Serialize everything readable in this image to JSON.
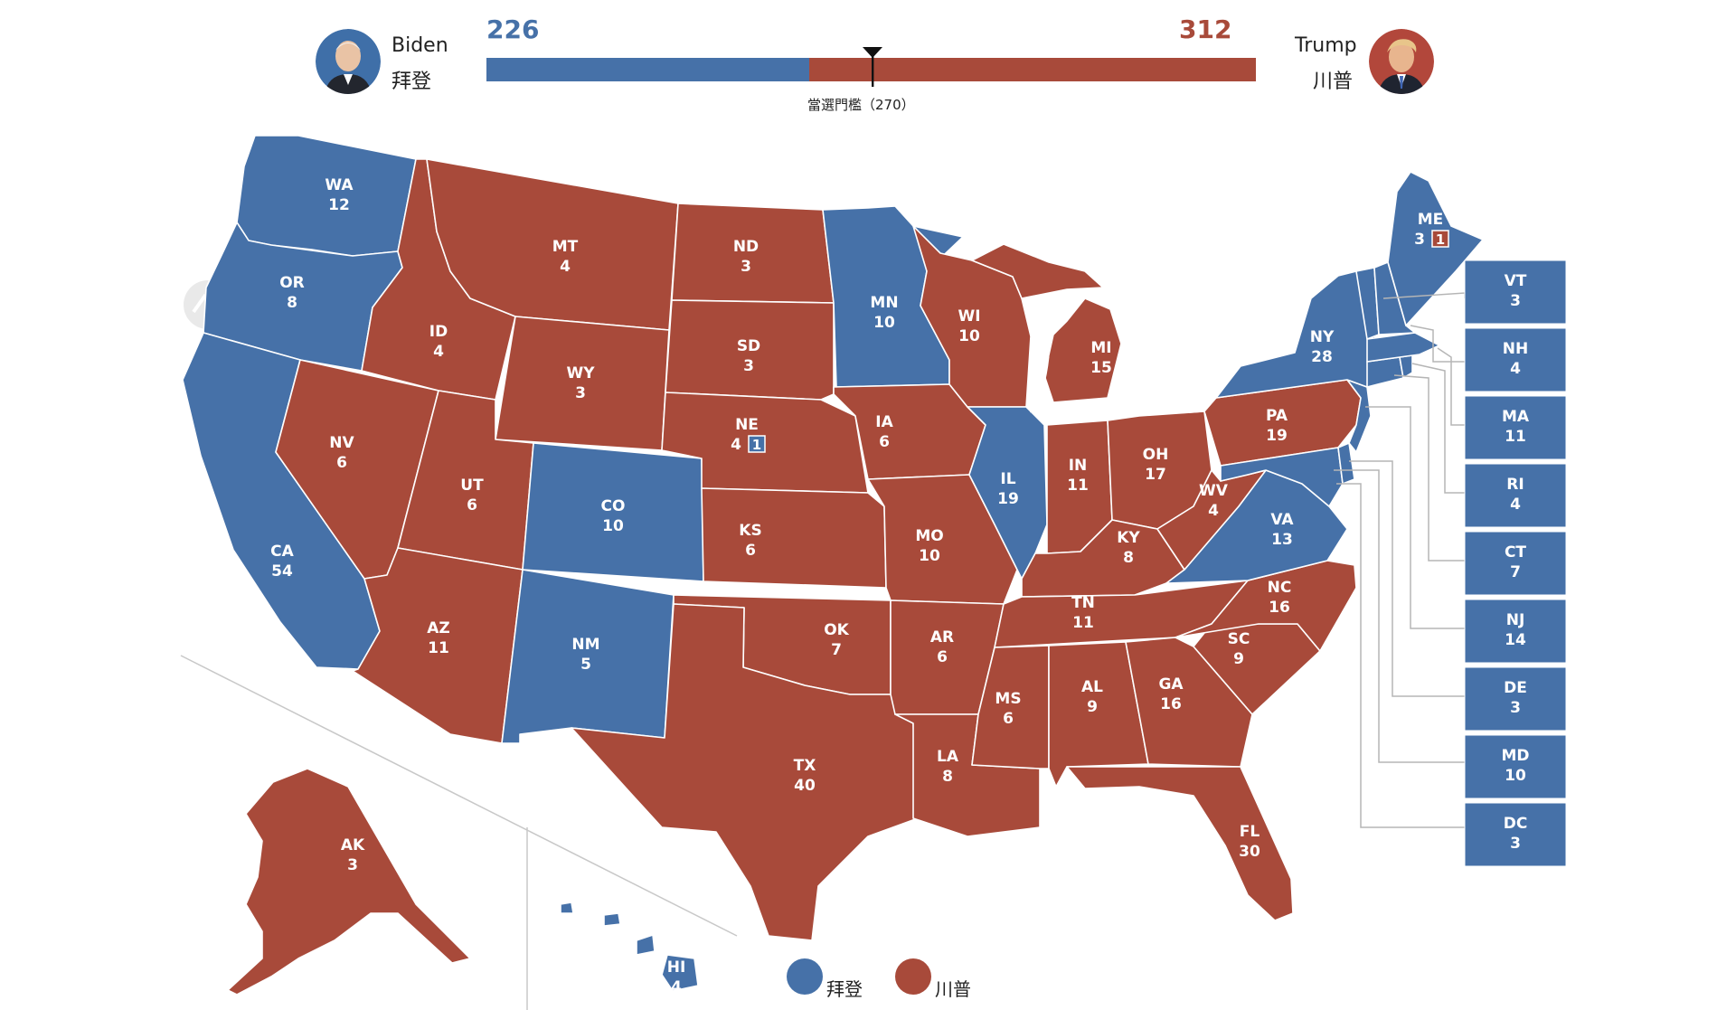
{
  "header": {
    "biden": {
      "name": "Biden",
      "name_zh": "拜登",
      "score": "226"
    },
    "trump": {
      "name": "Trump",
      "name_zh": "川普",
      "score": "312"
    },
    "threshold_label": "當選門檻（270）"
  },
  "totals": {
    "biden": 226,
    "trump": 312,
    "threshold": 270
  },
  "colors": {
    "biden": "#4671a8",
    "trump": "#a84a3a"
  },
  "legend": {
    "biden": "拜登",
    "trump": "川普"
  },
  "watermark": "flourish",
  "states": [
    {
      "abbr": "WA",
      "ev": "12",
      "winner": "biden"
    },
    {
      "abbr": "OR",
      "ev": "8",
      "winner": "biden"
    },
    {
      "abbr": "CA",
      "ev": "54",
      "winner": "biden"
    },
    {
      "abbr": "NV",
      "ev": "6",
      "winner": "trump"
    },
    {
      "abbr": "ID",
      "ev": "4",
      "winner": "trump"
    },
    {
      "abbr": "MT",
      "ev": "4",
      "winner": "trump"
    },
    {
      "abbr": "WY",
      "ev": "3",
      "winner": "trump"
    },
    {
      "abbr": "UT",
      "ev": "6",
      "winner": "trump"
    },
    {
      "abbr": "AZ",
      "ev": "11",
      "winner": "trump"
    },
    {
      "abbr": "CO",
      "ev": "10",
      "winner": "biden"
    },
    {
      "abbr": "NM",
      "ev": "5",
      "winner": "biden"
    },
    {
      "abbr": "ND",
      "ev": "3",
      "winner": "trump"
    },
    {
      "abbr": "SD",
      "ev": "3",
      "winner": "trump"
    },
    {
      "abbr": "NE",
      "ev": "4",
      "winner": "trump",
      "split": "1"
    },
    {
      "abbr": "KS",
      "ev": "6",
      "winner": "trump"
    },
    {
      "abbr": "OK",
      "ev": "7",
      "winner": "trump"
    },
    {
      "abbr": "TX",
      "ev": "40",
      "winner": "trump"
    },
    {
      "abbr": "MN",
      "ev": "10",
      "winner": "biden"
    },
    {
      "abbr": "IA",
      "ev": "6",
      "winner": "trump"
    },
    {
      "abbr": "MO",
      "ev": "10",
      "winner": "trump"
    },
    {
      "abbr": "AR",
      "ev": "6",
      "winner": "trump"
    },
    {
      "abbr": "LA",
      "ev": "8",
      "winner": "trump"
    },
    {
      "abbr": "WI",
      "ev": "10",
      "winner": "trump"
    },
    {
      "abbr": "IL",
      "ev": "19",
      "winner": "biden"
    },
    {
      "abbr": "MI",
      "ev": "15",
      "winner": "trump"
    },
    {
      "abbr": "IN",
      "ev": "11",
      "winner": "trump"
    },
    {
      "abbr": "OH",
      "ev": "17",
      "winner": "trump"
    },
    {
      "abbr": "KY",
      "ev": "8",
      "winner": "trump"
    },
    {
      "abbr": "TN",
      "ev": "11",
      "winner": "trump"
    },
    {
      "abbr": "MS",
      "ev": "6",
      "winner": "trump"
    },
    {
      "abbr": "AL",
      "ev": "9",
      "winner": "trump"
    },
    {
      "abbr": "GA",
      "ev": "16",
      "winner": "trump"
    },
    {
      "abbr": "FL",
      "ev": "30",
      "winner": "trump"
    },
    {
      "abbr": "SC",
      "ev": "9",
      "winner": "trump"
    },
    {
      "abbr": "NC",
      "ev": "16",
      "winner": "trump"
    },
    {
      "abbr": "VA",
      "ev": "13",
      "winner": "biden"
    },
    {
      "abbr": "WV",
      "ev": "4",
      "winner": "trump"
    },
    {
      "abbr": "PA",
      "ev": "19",
      "winner": "trump"
    },
    {
      "abbr": "NY",
      "ev": "28",
      "winner": "biden"
    },
    {
      "abbr": "ME",
      "ev": "3",
      "winner": "biden",
      "split": "1"
    },
    {
      "abbr": "AK",
      "ev": "3",
      "winner": "trump"
    },
    {
      "abbr": "HI",
      "ev": "4",
      "winner": "biden"
    }
  ],
  "small_states": [
    {
      "abbr": "VT",
      "ev": "3",
      "winner": "biden"
    },
    {
      "abbr": "NH",
      "ev": "4",
      "winner": "biden"
    },
    {
      "abbr": "MA",
      "ev": "11",
      "winner": "biden"
    },
    {
      "abbr": "RI",
      "ev": "4",
      "winner": "biden"
    },
    {
      "abbr": "CT",
      "ev": "7",
      "winner": "biden"
    },
    {
      "abbr": "NJ",
      "ev": "14",
      "winner": "biden"
    },
    {
      "abbr": "DE",
      "ev": "3",
      "winner": "biden"
    },
    {
      "abbr": "MD",
      "ev": "10",
      "winner": "biden"
    },
    {
      "abbr": "DC",
      "ev": "3",
      "winner": "biden"
    }
  ]
}
